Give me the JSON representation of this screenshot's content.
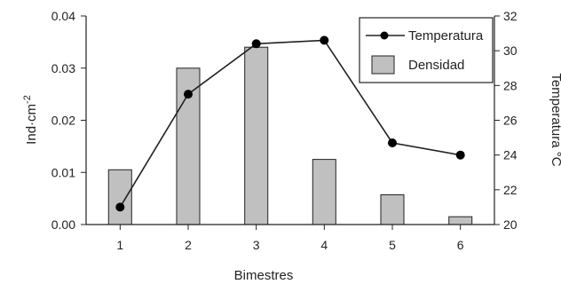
{
  "chart_data": {
    "type": "bar+line",
    "categories": [
      "1",
      "2",
      "3",
      "4",
      "5",
      "6"
    ],
    "series": [
      {
        "name": "Densidad",
        "type": "bar",
        "axis": "left",
        "values": [
          0.0105,
          0.03,
          0.034,
          0.0125,
          0.0057,
          0.0015
        ]
      },
      {
        "name": "Temperatura",
        "type": "line",
        "axis": "right",
        "values": [
          21.0,
          27.5,
          30.4,
          30.6,
          24.7,
          24.0
        ]
      }
    ],
    "xlabel": "Bimestres",
    "ylabel_left": "Ind·cm",
    "ylabel_left_exp": "-2",
    "ylabel_right": "Temperatura °C",
    "ylim_left": [
      0,
      0.04
    ],
    "yticks_left": [
      "0.00",
      "0.01",
      "0.02",
      "0.03",
      "0.04"
    ],
    "ylim_right": [
      20,
      32
    ],
    "yticks_right": [
      "20",
      "22",
      "24",
      "26",
      "28",
      "30",
      "32"
    ],
    "legend_position": "top-right",
    "grid": false,
    "colors": {
      "bar_fill": "#c0c0c0",
      "bar_stroke": "#222222",
      "line": "#222222",
      "marker": "#000000"
    }
  }
}
